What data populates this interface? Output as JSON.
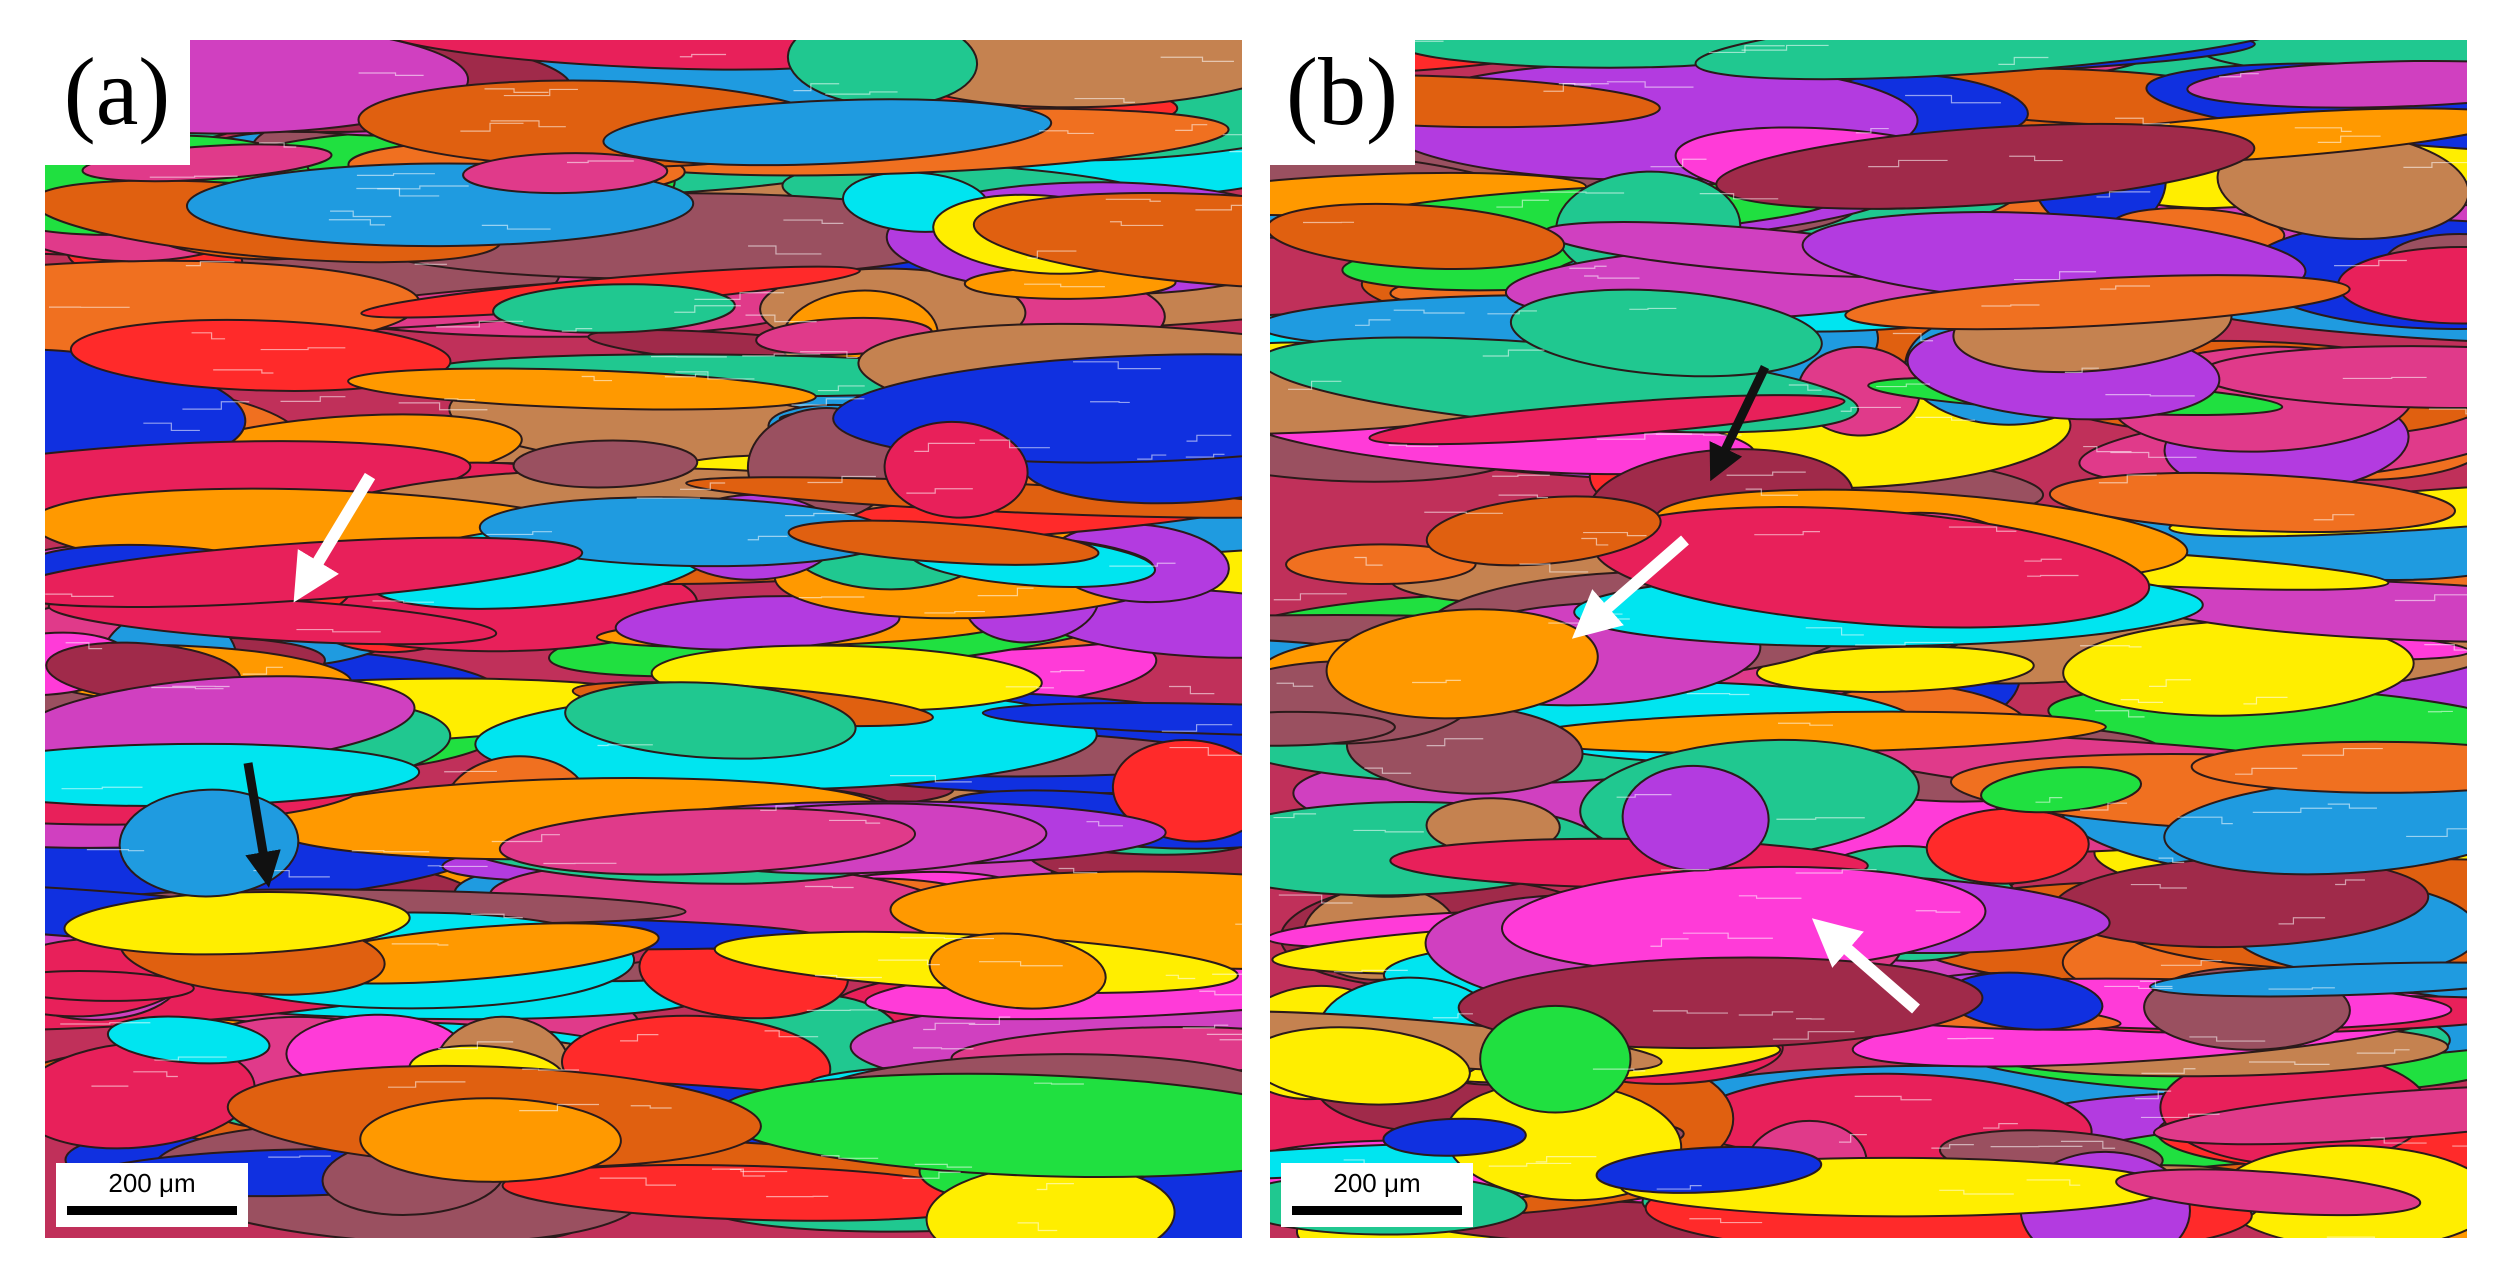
{
  "panels": [
    {
      "label": "(a)",
      "scale_bar": "200 μm"
    },
    {
      "label": "(b)",
      "scale_bar": "200 μm"
    }
  ]
}
